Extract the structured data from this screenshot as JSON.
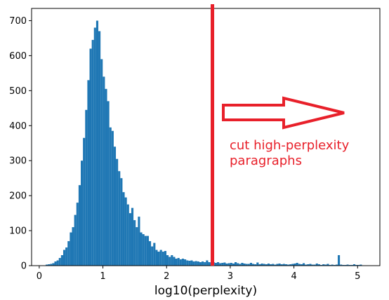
{
  "chart_data": {
    "type": "bar",
    "title": "",
    "xlabel": "log10(perplexity)",
    "ylabel": "",
    "xlim": [
      -0.12,
      5.35
    ],
    "ylim": [
      0,
      735
    ],
    "xticks": [
      0,
      1,
      2,
      3,
      4,
      5
    ],
    "yticks": [
      0,
      100,
      200,
      300,
      400,
      500,
      600,
      700
    ],
    "bar_color": "#1f77b4",
    "bin_width": 0.0345,
    "bin_starts": [
      0.1,
      0.1345,
      0.169,
      0.2035,
      0.238,
      0.2725,
      0.307,
      0.3415,
      0.376,
      0.4105,
      0.445,
      0.4795,
      0.514,
      0.5485,
      0.583,
      0.6175,
      0.652,
      0.6865,
      0.721,
      0.7555,
      0.79,
      0.8245,
      0.859,
      0.8935,
      0.928,
      0.9625,
      0.997,
      1.0315,
      1.066,
      1.1005,
      1.135,
      1.1695,
      1.204,
      1.2385,
      1.273,
      1.3075,
      1.342,
      1.3765,
      1.411,
      1.4455,
      1.48,
      1.5145,
      1.549,
      1.5835,
      1.618,
      1.6525,
      1.687,
      1.7215,
      1.756,
      1.7905,
      1.825,
      1.8595,
      1.894,
      1.9285,
      1.963,
      1.9975,
      2.032,
      2.0665,
      2.101,
      2.1355,
      2.17,
      2.2045,
      2.239,
      2.2735,
      2.308,
      2.3425,
      2.377,
      2.4115,
      2.446,
      2.4805,
      2.515,
      2.5495,
      2.584,
      2.6185,
      2.653,
      2.6875,
      2.722,
      2.7565,
      2.791,
      2.8255,
      2.86,
      2.8945,
      2.929,
      2.9635,
      2.998,
      3.0325,
      3.067,
      3.1015,
      3.136,
      3.1705,
      3.205,
      3.2395,
      3.274,
      3.3085,
      3.343,
      3.3775,
      3.412,
      3.4465,
      3.481,
      3.5155,
      3.55,
      3.5845,
      3.619,
      3.6535,
      3.688,
      3.7225,
      3.757,
      3.7915,
      3.826,
      3.8605,
      3.895,
      3.9295,
      3.964,
      3.9985,
      4.033,
      4.0675,
      4.102,
      4.1365,
      4.171,
      4.2055,
      4.24,
      4.2745,
      4.309,
      4.3435,
      4.378,
      4.4125,
      4.447,
      4.4815,
      4.516,
      4.5505,
      4.585,
      4.6195,
      4.654,
      4.6885,
      4.723,
      4.7575,
      4.792,
      4.8265,
      4.861,
      4.8955,
      4.93,
      4.9645,
      4.999,
      5.0335,
      5.068,
      5.1025
    ],
    "counts": [
      3,
      4,
      5,
      7,
      12,
      15,
      22,
      30,
      45,
      52,
      70,
      95,
      110,
      145,
      180,
      230,
      300,
      365,
      445,
      530,
      620,
      645,
      680,
      700,
      670,
      590,
      540,
      505,
      470,
      395,
      385,
      340,
      305,
      270,
      250,
      210,
      195,
      175,
      150,
      165,
      130,
      110,
      140,
      95,
      90,
      85,
      85,
      70,
      55,
      65,
      45,
      40,
      45,
      40,
      42,
      30,
      25,
      30,
      25,
      20,
      22,
      18,
      20,
      18,
      15,
      14,
      15,
      12,
      13,
      12,
      10,
      12,
      10,
      15,
      10,
      9,
      10,
      8,
      10,
      7,
      8,
      9,
      6,
      7,
      8,
      6,
      10,
      7,
      5,
      8,
      6,
      5,
      5,
      8,
      5,
      4,
      9,
      4,
      6,
      5,
      4,
      6,
      4,
      5,
      3,
      5,
      6,
      4,
      5,
      4,
      3,
      4,
      5,
      6,
      8,
      5,
      4,
      7,
      3,
      4,
      5,
      3,
      3,
      6,
      4,
      2,
      4,
      3,
      5,
      2,
      3,
      2,
      3,
      30,
      3,
      2,
      2,
      3,
      2,
      2,
      4,
      2,
      2,
      3
    ],
    "annotations": {
      "cutoff_line_x": 2.72,
      "cutoff_line_color": "#e8202a",
      "text_lines": [
        "cut high-perplexity",
        "paragraphs"
      ],
      "arrow_color": "#e8202a"
    }
  }
}
